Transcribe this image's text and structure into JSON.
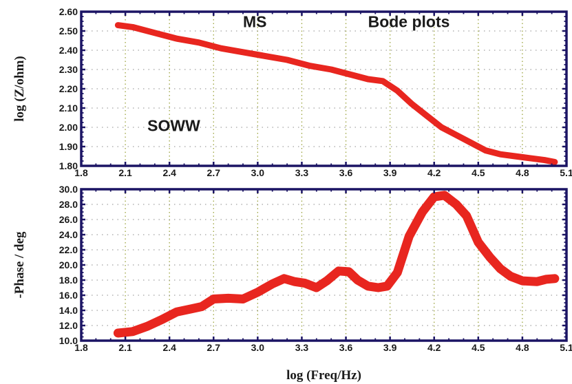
{
  "chart_data": [
    {
      "type": "line",
      "title": "",
      "xlabel": "",
      "ylabel": "log (Z/ohm)",
      "xlim": [
        1.8,
        5.1
      ],
      "ylim": [
        1.8,
        2.6
      ],
      "xticks": [
        "1.8",
        "2.1",
        "2.4",
        "2.7",
        "3.0",
        "3.3",
        "3.6",
        "3.9",
        "4.2",
        "4.5",
        "4.8",
        "5.1"
      ],
      "yticks": [
        "1.80",
        "1.90",
        "2.00",
        "2.10",
        "2.20",
        "2.30",
        "2.40",
        "2.50",
        "2.60"
      ],
      "grid": true,
      "annotations": [
        {
          "text": "MS",
          "x": 2.9,
          "y": 2.52
        },
        {
          "text": "Bode plots",
          "x": 3.75,
          "y": 2.52
        },
        {
          "text": "SOWW",
          "x": 2.25,
          "y": 1.98
        }
      ],
      "series": [
        {
          "color": "#e8261f",
          "x": [
            2.05,
            2.15,
            2.3,
            2.45,
            2.6,
            2.75,
            2.9,
            3.05,
            3.2,
            3.35,
            3.5,
            3.65,
            3.75,
            3.85,
            3.95,
            4.05,
            4.15,
            4.25,
            4.35,
            4.45,
            4.55,
            4.65,
            4.75,
            4.85,
            4.95,
            5.02
          ],
          "y": [
            2.53,
            2.52,
            2.49,
            2.46,
            2.44,
            2.41,
            2.39,
            2.37,
            2.35,
            2.32,
            2.3,
            2.27,
            2.25,
            2.24,
            2.19,
            2.12,
            2.06,
            2.0,
            1.96,
            1.92,
            1.88,
            1.86,
            1.85,
            1.84,
            1.83,
            1.82
          ]
        }
      ]
    },
    {
      "type": "line",
      "title": "",
      "xlabel": "log (Freq/Hz)",
      "ylabel": "-Phase / deg",
      "xlim": [
        1.8,
        5.1
      ],
      "ylim": [
        10.0,
        30.0
      ],
      "xticks": [
        "1.8",
        "2.1",
        "2.4",
        "2.7",
        "3.0",
        "3.3",
        "3.6",
        "3.9",
        "4.2",
        "4.5",
        "4.8",
        "5.1"
      ],
      "yticks": [
        "10.0",
        "12.0",
        "14.0",
        "16.0",
        "18.0",
        "20.0",
        "22.0",
        "24.0",
        "26.0",
        "28.0",
        "30.0"
      ],
      "grid": true,
      "series": [
        {
          "color": "#e8261f",
          "x": [
            2.05,
            2.15,
            2.25,
            2.35,
            2.45,
            2.55,
            2.62,
            2.7,
            2.8,
            2.9,
            3.0,
            3.1,
            3.18,
            3.25,
            3.32,
            3.4,
            3.47,
            3.55,
            3.62,
            3.68,
            3.75,
            3.82,
            3.88,
            3.95,
            4.03,
            4.12,
            4.2,
            4.27,
            4.35,
            4.42,
            4.5,
            4.58,
            4.65,
            4.72,
            4.8,
            4.9,
            4.96,
            5.02
          ],
          "y": [
            11.0,
            11.2,
            11.9,
            12.8,
            13.8,
            14.2,
            14.5,
            15.5,
            15.6,
            15.5,
            16.4,
            17.5,
            18.2,
            17.8,
            17.6,
            17.0,
            17.9,
            19.2,
            19.1,
            18.0,
            17.2,
            17.0,
            17.2,
            19.0,
            23.8,
            27.0,
            29.0,
            29.2,
            28.0,
            26.5,
            23.0,
            21.0,
            19.5,
            18.5,
            17.9,
            17.8,
            18.1,
            18.2
          ]
        }
      ]
    }
  ]
}
